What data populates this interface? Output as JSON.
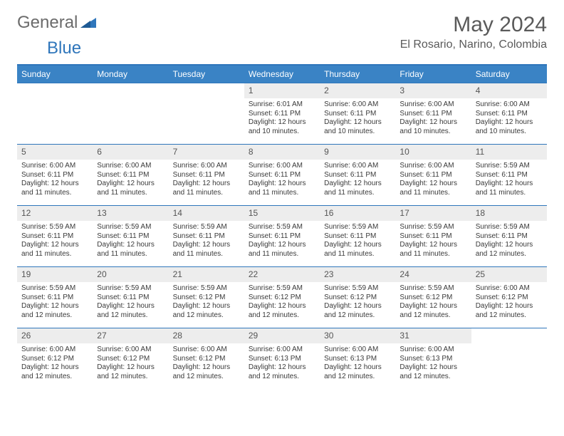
{
  "brand": {
    "part1": "General",
    "part2": "Blue"
  },
  "title": "May 2024",
  "location": "El Rosario, Narino, Colombia",
  "colors": {
    "header_bg": "#3a83c5",
    "header_text": "#ffffff",
    "border": "#2f76bb",
    "daynum_bg": "#ededed",
    "text": "#3a3a3a",
    "title": "#5a5a5a"
  },
  "weekdays": [
    "Sunday",
    "Monday",
    "Tuesday",
    "Wednesday",
    "Thursday",
    "Friday",
    "Saturday"
  ],
  "layout": {
    "first_weekday_index": 3,
    "days_in_month": 31
  },
  "days": {
    "1": {
      "sunrise": "6:01 AM",
      "sunset": "6:11 PM",
      "daylight": "12 hours and 10 minutes."
    },
    "2": {
      "sunrise": "6:00 AM",
      "sunset": "6:11 PM",
      "daylight": "12 hours and 10 minutes."
    },
    "3": {
      "sunrise": "6:00 AM",
      "sunset": "6:11 PM",
      "daylight": "12 hours and 10 minutes."
    },
    "4": {
      "sunrise": "6:00 AM",
      "sunset": "6:11 PM",
      "daylight": "12 hours and 10 minutes."
    },
    "5": {
      "sunrise": "6:00 AM",
      "sunset": "6:11 PM",
      "daylight": "12 hours and 11 minutes."
    },
    "6": {
      "sunrise": "6:00 AM",
      "sunset": "6:11 PM",
      "daylight": "12 hours and 11 minutes."
    },
    "7": {
      "sunrise": "6:00 AM",
      "sunset": "6:11 PM",
      "daylight": "12 hours and 11 minutes."
    },
    "8": {
      "sunrise": "6:00 AM",
      "sunset": "6:11 PM",
      "daylight": "12 hours and 11 minutes."
    },
    "9": {
      "sunrise": "6:00 AM",
      "sunset": "6:11 PM",
      "daylight": "12 hours and 11 minutes."
    },
    "10": {
      "sunrise": "6:00 AM",
      "sunset": "6:11 PM",
      "daylight": "12 hours and 11 minutes."
    },
    "11": {
      "sunrise": "5:59 AM",
      "sunset": "6:11 PM",
      "daylight": "12 hours and 11 minutes."
    },
    "12": {
      "sunrise": "5:59 AM",
      "sunset": "6:11 PM",
      "daylight": "12 hours and 11 minutes."
    },
    "13": {
      "sunrise": "5:59 AM",
      "sunset": "6:11 PM",
      "daylight": "12 hours and 11 minutes."
    },
    "14": {
      "sunrise": "5:59 AM",
      "sunset": "6:11 PM",
      "daylight": "12 hours and 11 minutes."
    },
    "15": {
      "sunrise": "5:59 AM",
      "sunset": "6:11 PM",
      "daylight": "12 hours and 11 minutes."
    },
    "16": {
      "sunrise": "5:59 AM",
      "sunset": "6:11 PM",
      "daylight": "12 hours and 11 minutes."
    },
    "17": {
      "sunrise": "5:59 AM",
      "sunset": "6:11 PM",
      "daylight": "12 hours and 11 minutes."
    },
    "18": {
      "sunrise": "5:59 AM",
      "sunset": "6:11 PM",
      "daylight": "12 hours and 12 minutes."
    },
    "19": {
      "sunrise": "5:59 AM",
      "sunset": "6:11 PM",
      "daylight": "12 hours and 12 minutes."
    },
    "20": {
      "sunrise": "5:59 AM",
      "sunset": "6:11 PM",
      "daylight": "12 hours and 12 minutes."
    },
    "21": {
      "sunrise": "5:59 AM",
      "sunset": "6:12 PM",
      "daylight": "12 hours and 12 minutes."
    },
    "22": {
      "sunrise": "5:59 AM",
      "sunset": "6:12 PM",
      "daylight": "12 hours and 12 minutes."
    },
    "23": {
      "sunrise": "5:59 AM",
      "sunset": "6:12 PM",
      "daylight": "12 hours and 12 minutes."
    },
    "24": {
      "sunrise": "5:59 AM",
      "sunset": "6:12 PM",
      "daylight": "12 hours and 12 minutes."
    },
    "25": {
      "sunrise": "6:00 AM",
      "sunset": "6:12 PM",
      "daylight": "12 hours and 12 minutes."
    },
    "26": {
      "sunrise": "6:00 AM",
      "sunset": "6:12 PM",
      "daylight": "12 hours and 12 minutes."
    },
    "27": {
      "sunrise": "6:00 AM",
      "sunset": "6:12 PM",
      "daylight": "12 hours and 12 minutes."
    },
    "28": {
      "sunrise": "6:00 AM",
      "sunset": "6:12 PM",
      "daylight": "12 hours and 12 minutes."
    },
    "29": {
      "sunrise": "6:00 AM",
      "sunset": "6:13 PM",
      "daylight": "12 hours and 12 minutes."
    },
    "30": {
      "sunrise": "6:00 AM",
      "sunset": "6:13 PM",
      "daylight": "12 hours and 12 minutes."
    },
    "31": {
      "sunrise": "6:00 AM",
      "sunset": "6:13 PM",
      "daylight": "12 hours and 12 minutes."
    }
  },
  "labels": {
    "sunrise": "Sunrise:",
    "sunset": "Sunset:",
    "daylight": "Daylight:"
  }
}
